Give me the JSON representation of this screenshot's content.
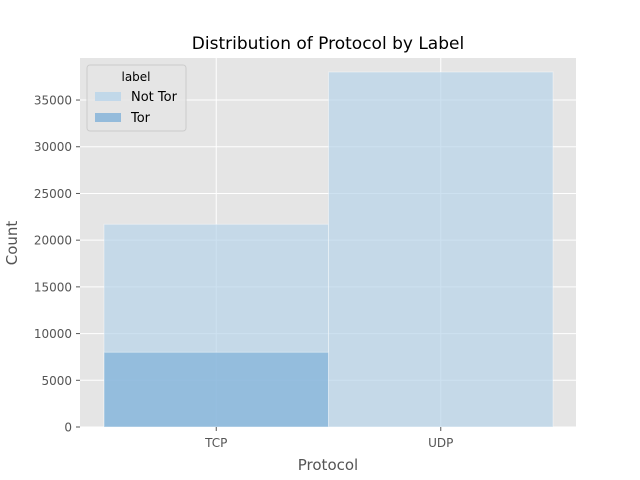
{
  "chart_data": {
    "type": "bar",
    "title": "Distribution of Protocol by Label",
    "xlabel": "Protocol",
    "ylabel": "Count",
    "categories": [
      "TCP",
      "UDP"
    ],
    "ylim": [
      0,
      39500
    ],
    "yticks": [
      0,
      5000,
      10000,
      15000,
      20000,
      25000,
      30000,
      35000
    ],
    "yticklabels": [
      "0",
      "5000",
      "10000",
      "15000",
      "20000",
      "25000",
      "30000",
      "35000"
    ],
    "series": [
      {
        "name": "Not Tor",
        "values": [
          21700,
          38000
        ],
        "color": "#b8d4ea"
      },
      {
        "name": "Tor",
        "values": [
          8000,
          0
        ],
        "color": "#7fb0d8"
      }
    ],
    "legend": {
      "title": "label",
      "placement": "top-left"
    },
    "grid": true,
    "colors": {
      "panel": "#e5e5e5",
      "grid": "#ffffff",
      "text": "#555555",
      "title": "#000000"
    }
  }
}
